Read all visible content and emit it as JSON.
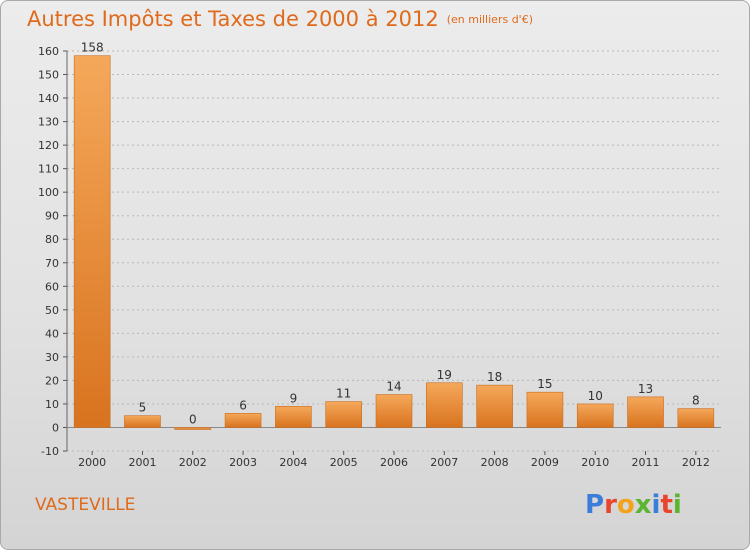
{
  "header": {
    "title": "Autres Impôts et Taxes de 2000 à 2012",
    "unit": "(en milliers d'€)"
  },
  "footer": {
    "commune": "VASTEVILLE",
    "logo": "Proxiti",
    "logo_colors": [
      "#3b7dd8",
      "#e8452c",
      "#f2a31b",
      "#5cb531",
      "#3b7dd8",
      "#e8452c",
      "#5cb531"
    ]
  },
  "colors": {
    "bar_light": "#f5a85a",
    "bar_dark": "#d8731f",
    "accent": "#e06a1c",
    "grid": "#b8b8b8"
  },
  "chart_data": {
    "type": "bar",
    "categories": [
      "2000",
      "2001",
      "2002",
      "2003",
      "2004",
      "2005",
      "2006",
      "2007",
      "2008",
      "2009",
      "2010",
      "2011",
      "2012"
    ],
    "values": [
      158,
      5,
      0,
      6,
      9,
      11,
      14,
      19,
      18,
      15,
      10,
      13,
      8
    ],
    "data_labels": [
      "158",
      "5",
      "0",
      "6",
      "9",
      "11",
      "14",
      "19",
      "18",
      "15",
      "10",
      "13",
      "8"
    ],
    "y_ticks": [
      "-10",
      "0",
      "10",
      "20",
      "30",
      "40",
      "50",
      "60",
      "70",
      "80",
      "90",
      "100",
      "110",
      "120",
      "130",
      "140",
      "150",
      "160"
    ],
    "ylim": [
      -10,
      160
    ],
    "grid": "dashed horizontal"
  }
}
